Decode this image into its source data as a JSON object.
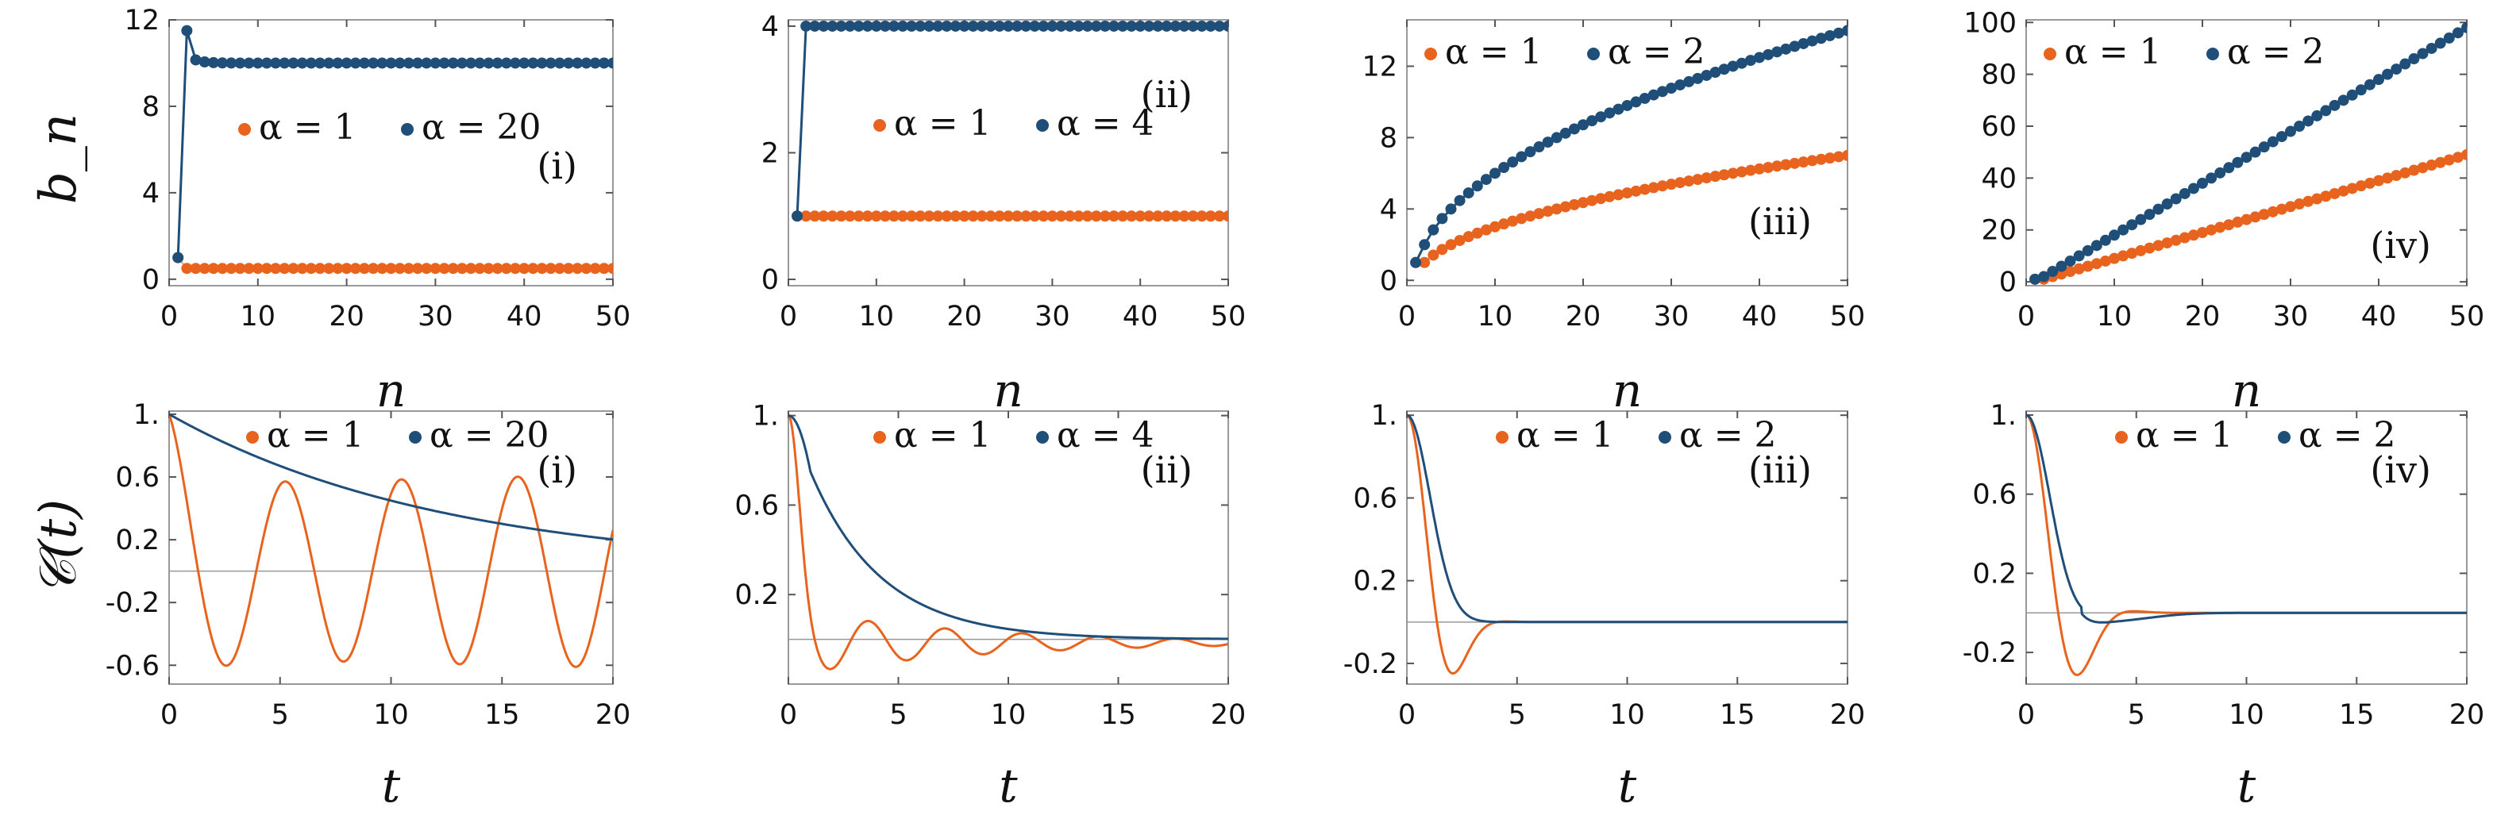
{
  "figure": {
    "row_labels": {
      "top": "b_n",
      "bottom": "𝒞(t)"
    },
    "x_labels": {
      "top": "n",
      "bottom": "t"
    }
  },
  "colors": {
    "alpha1": "#E8641E",
    "alphaN": "#1F4E79",
    "axis": "#999999",
    "zero_line": "#999999"
  },
  "chart_data": [
    {
      "type": "scatter",
      "row": 0,
      "col": 0,
      "panel_label": "(i)",
      "xlabel": "n",
      "ylabel": "b_n",
      "xlim": [
        0,
        50
      ],
      "ylim": [
        -0.3,
        12
      ],
      "xticks": [
        0,
        10,
        20,
        30,
        40,
        50
      ],
      "xtick_labels": [
        "0",
        "10",
        "20",
        "30",
        "40",
        "50"
      ],
      "yticks": [
        0,
        4,
        8,
        12
      ],
      "ytick_labels": [
        "0",
        "4",
        "8",
        "12"
      ],
      "legend": {
        "position": "center",
        "entries": [
          "α = 1",
          "α = 20"
        ]
      },
      "series": [
        {
          "name": "α = 1",
          "color": "alpha1",
          "formula": "b1_const",
          "alpha": 1
        },
        {
          "name": "α = 20",
          "color": "alphaN",
          "formula": "b1_const",
          "alpha": 20,
          "connect": true
        }
      ]
    },
    {
      "type": "scatter",
      "row": 0,
      "col": 1,
      "panel_label": "(ii)",
      "xlabel": "n",
      "ylabel": "b_n",
      "xlim": [
        0,
        50
      ],
      "ylim": [
        -0.1,
        4.1
      ],
      "xticks": [
        0,
        10,
        20,
        30,
        40,
        50
      ],
      "xtick_labels": [
        "0",
        "10",
        "20",
        "30",
        "40",
        "50"
      ],
      "yticks": [
        0,
        2,
        4
      ],
      "ytick_labels": [
        "0",
        "2",
        "4"
      ],
      "legend": {
        "position": "center",
        "entries": [
          "α = 1",
          "α = 4"
        ]
      },
      "series": [
        {
          "name": "α = 1",
          "color": "alpha1",
          "formula": "b2_const",
          "alpha": 1
        },
        {
          "name": "α = 4",
          "color": "alphaN",
          "formula": "b2_const",
          "alpha": 4,
          "connect": true
        }
      ]
    },
    {
      "type": "scatter",
      "row": 0,
      "col": 2,
      "panel_label": "(iii)",
      "xlabel": "n",
      "ylabel": "b_n",
      "xlim": [
        0,
        50
      ],
      "ylim": [
        -0.3,
        14.6
      ],
      "xticks": [
        0,
        10,
        20,
        30,
        40,
        50
      ],
      "xtick_labels": [
        "0",
        "10",
        "20",
        "30",
        "40",
        "50"
      ],
      "yticks": [
        0,
        4,
        8,
        12
      ],
      "ytick_labels": [
        "0",
        "4",
        "8",
        "12"
      ],
      "legend": {
        "position": "top-left",
        "entries": [
          "α = 1",
          "α = 2"
        ]
      },
      "series": [
        {
          "name": "α = 1",
          "color": "alpha1",
          "formula": "sqrt",
          "alpha": 1
        },
        {
          "name": "α = 2",
          "color": "alphaN",
          "formula": "sqrt",
          "alpha": 2,
          "connect": true
        }
      ]
    },
    {
      "type": "scatter",
      "row": 0,
      "col": 3,
      "panel_label": "(iv)",
      "xlabel": "n",
      "ylabel": "b_n",
      "xlim": [
        0,
        50
      ],
      "ylim": [
        -1.5,
        101
      ],
      "xticks": [
        0,
        10,
        20,
        30,
        40,
        50
      ],
      "xtick_labels": [
        "0",
        "10",
        "20",
        "30",
        "40",
        "50"
      ],
      "yticks": [
        0,
        20,
        40,
        60,
        80,
        100
      ],
      "ytick_labels": [
        "0",
        "20",
        "40",
        "60",
        "80",
        "100"
      ],
      "legend": {
        "position": "top-left",
        "entries": [
          "α = 1",
          "α = 2"
        ]
      },
      "series": [
        {
          "name": "α = 1",
          "color": "alpha1",
          "formula": "linear",
          "alpha": 1
        },
        {
          "name": "α = 2",
          "color": "alphaN",
          "formula": "linear",
          "alpha": 2,
          "connect": true
        }
      ]
    },
    {
      "type": "line",
      "row": 1,
      "col": 0,
      "panel_label": "(i)",
      "xlabel": "t",
      "ylabel": "𝒞(t)",
      "xlim": [
        0,
        20
      ],
      "ylim": [
        -0.72,
        1.02
      ],
      "xticks": [
        0,
        5,
        10,
        15,
        20
      ],
      "xtick_labels": [
        "0",
        "5",
        "10",
        "15",
        "20"
      ],
      "yticks": [
        1,
        0.6,
        0.2,
        -0.2,
        -0.6
      ],
      "ytick_labels": [
        "1.",
        "0.6",
        "0.2",
        "-0.2",
        "-0.6"
      ],
      "legend": {
        "position": "top",
        "entries": [
          "α = 1",
          "α = 20"
        ]
      },
      "series": [
        {
          "name": "α = 1",
          "color": "alpha1",
          "formula": "cos_growth"
        },
        {
          "name": "α = 20",
          "color": "alphaN",
          "formula": "exp_decay",
          "rate": 0.08
        }
      ]
    },
    {
      "type": "line",
      "row": 1,
      "col": 1,
      "panel_label": "(ii)",
      "xlabel": "t",
      "ylabel": "𝒞(t)",
      "xlim": [
        0,
        20
      ],
      "ylim": [
        -0.2,
        1.02
      ],
      "xticks": [
        0,
        5,
        10,
        15,
        20
      ],
      "xtick_labels": [
        "0",
        "5",
        "10",
        "15",
        "20"
      ],
      "yticks": [
        1,
        0.6,
        0.2
      ],
      "ytick_labels": [
        "1.",
        "0.6",
        "0.2"
      ],
      "legend": {
        "position": "top",
        "entries": [
          "α = 1",
          "α = 4"
        ]
      },
      "series": [
        {
          "name": "α = 1",
          "color": "alpha1",
          "formula": "damped_osc",
          "a": 0.32,
          "w": 1.85,
          "amp": 0.0,
          "tail": 0.06
        },
        {
          "name": "α = 4",
          "color": "alphaN",
          "formula": "gauss_exp",
          "rate": 0.3
        }
      ]
    },
    {
      "type": "line",
      "row": 1,
      "col": 2,
      "panel_label": "(iii)",
      "xlabel": "t",
      "ylabel": "𝒞(t)",
      "xlim": [
        0,
        20
      ],
      "ylim": [
        -0.3,
        1.02
      ],
      "xticks": [
        0,
        5,
        10,
        15,
        20
      ],
      "xtick_labels": [
        "0",
        "5",
        "10",
        "15",
        "20"
      ],
      "yticks": [
        1,
        0.6,
        0.2,
        -0.2
      ],
      "ytick_labels": [
        "1.",
        "0.6",
        "0.2",
        "-0.2"
      ],
      "legend": {
        "position": "top",
        "entries": [
          "α = 1",
          "α = 2"
        ]
      },
      "series": [
        {
          "name": "α = 1",
          "color": "alpha1",
          "formula": "gauss_osc",
          "a": 0.5,
          "w": 1.15
        },
        {
          "name": "α = 2",
          "color": "alphaN",
          "formula": "gauss_plain",
          "a": 0.45
        }
      ]
    },
    {
      "type": "line",
      "row": 1,
      "col": 3,
      "panel_label": "(iv)",
      "xlabel": "t",
      "ylabel": "𝒞(t)",
      "xlim": [
        0,
        20
      ],
      "ylim": [
        -0.36,
        1.02
      ],
      "xticks": [
        0,
        5,
        10,
        15,
        20
      ],
      "xtick_labels": [
        "0",
        "5",
        "10",
        "15",
        "20"
      ],
      "yticks": [
        1,
        0.6,
        0.2,
        -0.2
      ],
      "ytick_labels": [
        "1.",
        "0.6",
        "0.2",
        "-0.2"
      ],
      "legend": {
        "position": "top",
        "entries": [
          "α = 1",
          "α = 2"
        ]
      },
      "series": [
        {
          "name": "α = 1",
          "color": "alpha1",
          "formula": "gauss_osc",
          "a": 0.35,
          "w": 1.08
        },
        {
          "name": "α = 2",
          "color": "alphaN",
          "formula": "gauss_osc2",
          "a": 0.5,
          "w": 0.78
        }
      ]
    }
  ]
}
